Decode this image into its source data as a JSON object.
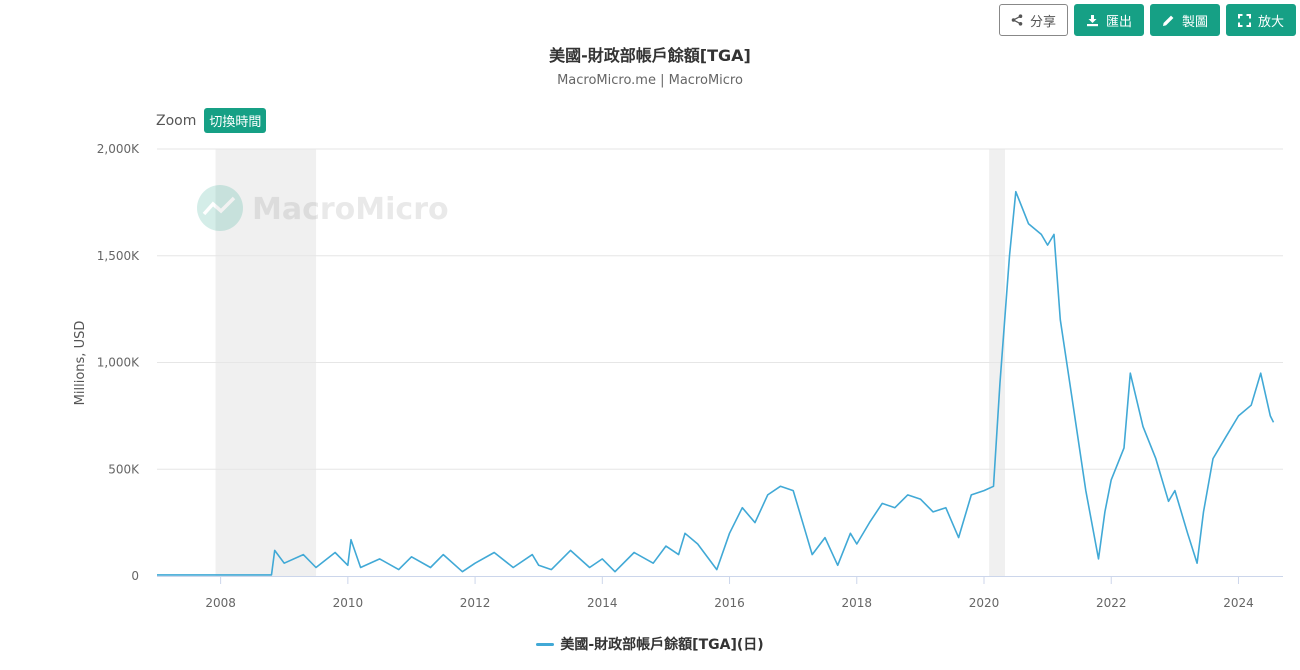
{
  "toolbar": {
    "share": "分享",
    "export": "匯出",
    "draw": "製圖",
    "expand": "放大"
  },
  "zoom": {
    "label": "Zoom",
    "button": "切換時間"
  },
  "watermark": "MacroMicro",
  "colors": {
    "line": "#41a9d6",
    "accent": "#16a085",
    "shade": "#f0f0f0",
    "grid": "#e6e6e6"
  },
  "chart_data": {
    "type": "line",
    "title": "美國-財政部帳戶餘額[TGA]",
    "subtitle": "MacroMicro.me | MacroMicro",
    "ylabel": "Millions, USD",
    "xlabel": "",
    "xlim": [
      2007.0,
      2024.7
    ],
    "ylim": [
      0,
      2000000
    ],
    "x_ticks": [
      2008,
      2010,
      2012,
      2014,
      2016,
      2018,
      2020,
      2022,
      2024
    ],
    "y_ticks": [
      {
        "value": 0,
        "label": "0"
      },
      {
        "value": 500000,
        "label": "500K"
      },
      {
        "value": 1000000,
        "label": "1,000K"
      },
      {
        "value": 1500000,
        "label": "1,500K"
      },
      {
        "value": 2000000,
        "label": "2,000K"
      }
    ],
    "recession_bands": [
      [
        2007.92,
        2009.5
      ],
      [
        2020.08,
        2020.33
      ]
    ],
    "legend": "top-right",
    "grid": true,
    "series": [
      {
        "name": "美國-財政部帳戶餘額[TGA](日)",
        "points": [
          [
            2007.0,
            5000
          ],
          [
            2008.0,
            5000
          ],
          [
            2008.8,
            5000
          ],
          [
            2008.85,
            120000
          ],
          [
            2009.0,
            60000
          ],
          [
            2009.3,
            100000
          ],
          [
            2009.5,
            40000
          ],
          [
            2009.8,
            110000
          ],
          [
            2010.0,
            50000
          ],
          [
            2010.05,
            170000
          ],
          [
            2010.2,
            40000
          ],
          [
            2010.5,
            80000
          ],
          [
            2010.8,
            30000
          ],
          [
            2011.0,
            90000
          ],
          [
            2011.3,
            40000
          ],
          [
            2011.5,
            100000
          ],
          [
            2011.8,
            20000
          ],
          [
            2012.0,
            60000
          ],
          [
            2012.3,
            110000
          ],
          [
            2012.6,
            40000
          ],
          [
            2012.9,
            100000
          ],
          [
            2013.0,
            50000
          ],
          [
            2013.2,
            30000
          ],
          [
            2013.5,
            120000
          ],
          [
            2013.8,
            40000
          ],
          [
            2014.0,
            80000
          ],
          [
            2014.2,
            20000
          ],
          [
            2014.5,
            110000
          ],
          [
            2014.8,
            60000
          ],
          [
            2015.0,
            140000
          ],
          [
            2015.2,
            100000
          ],
          [
            2015.3,
            200000
          ],
          [
            2015.5,
            150000
          ],
          [
            2015.8,
            30000
          ],
          [
            2016.0,
            200000
          ],
          [
            2016.2,
            320000
          ],
          [
            2016.4,
            250000
          ],
          [
            2016.6,
            380000
          ],
          [
            2016.8,
            420000
          ],
          [
            2017.0,
            400000
          ],
          [
            2017.2,
            200000
          ],
          [
            2017.3,
            100000
          ],
          [
            2017.5,
            180000
          ],
          [
            2017.7,
            50000
          ],
          [
            2017.9,
            200000
          ],
          [
            2018.0,
            150000
          ],
          [
            2018.2,
            250000
          ],
          [
            2018.4,
            340000
          ],
          [
            2018.6,
            320000
          ],
          [
            2018.8,
            380000
          ],
          [
            2019.0,
            360000
          ],
          [
            2019.2,
            300000
          ],
          [
            2019.4,
            320000
          ],
          [
            2019.6,
            180000
          ],
          [
            2019.8,
            380000
          ],
          [
            2020.0,
            400000
          ],
          [
            2020.15,
            420000
          ],
          [
            2020.25,
            900000
          ],
          [
            2020.4,
            1500000
          ],
          [
            2020.5,
            1800000
          ],
          [
            2020.7,
            1650000
          ],
          [
            2020.9,
            1600000
          ],
          [
            2021.0,
            1550000
          ],
          [
            2021.1,
            1600000
          ],
          [
            2021.2,
            1200000
          ],
          [
            2021.4,
            800000
          ],
          [
            2021.6,
            400000
          ],
          [
            2021.8,
            80000
          ],
          [
            2021.9,
            300000
          ],
          [
            2022.0,
            450000
          ],
          [
            2022.2,
            600000
          ],
          [
            2022.3,
            950000
          ],
          [
            2022.5,
            700000
          ],
          [
            2022.7,
            550000
          ],
          [
            2022.9,
            350000
          ],
          [
            2023.0,
            400000
          ],
          [
            2023.2,
            200000
          ],
          [
            2023.35,
            60000
          ],
          [
            2023.45,
            300000
          ],
          [
            2023.6,
            550000
          ],
          [
            2023.8,
            650000
          ],
          [
            2024.0,
            750000
          ],
          [
            2024.2,
            800000
          ],
          [
            2024.35,
            950000
          ],
          [
            2024.5,
            750000
          ],
          [
            2024.55,
            720000
          ]
        ]
      }
    ]
  }
}
